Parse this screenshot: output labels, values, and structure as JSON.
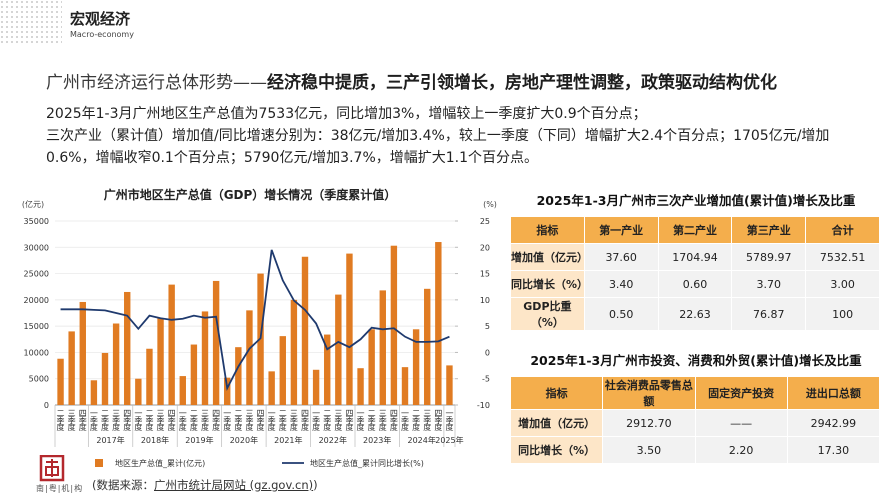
{
  "header": {
    "title": "宏观经济",
    "subtitle": "Macro-economy"
  },
  "headline": {
    "prefix": "广州市经济运行总体形势——",
    "emphasis": "经济稳中提质，三产引领增长，房地产理性调整，政策驱动结构优化"
  },
  "paragraphs": [
    "2025年1-3月广州地区生产总值为7533亿元，同比增加3%，增幅较上一季度扩大0.9个百分点；",
    "三次产业（累计值）增加值/同比增速分别为：38亿元/增加3.4%，较上一季度（下同）增幅扩大2.4个百分点；1705亿元/增加0.6%，增幅收窄0.1个百分点；5790亿元/增加3.7%，增幅扩大1.1个百分点。"
  ],
  "chart_data": {
    "type": "bar_line",
    "title": "广州市地区生产总值（GDP）增长情况（季度累计值）",
    "y_unit": "(亿元)",
    "y2_unit": "(%)",
    "category_groups": [
      {
        "label": null,
        "categories": [
          "二季度",
          "三季度",
          "四季度"
        ]
      },
      {
        "label": "2017年",
        "categories": [
          "一季度",
          "二季度",
          "三季度",
          "四季度"
        ]
      },
      {
        "label": "2018年",
        "categories": [
          "一季度",
          "二季度",
          "三季度",
          "四季度"
        ]
      },
      {
        "label": "2019年",
        "categories": [
          "一季度",
          "二季度",
          "三季度",
          "四季度"
        ]
      },
      {
        "label": "2020年",
        "categories": [
          "一季度",
          "二季度",
          "三季度",
          "四季度"
        ]
      },
      {
        "label": "2021年",
        "categories": [
          "一季度",
          "二季度",
          "三季度",
          "四季度"
        ]
      },
      {
        "label": "2022年",
        "categories": [
          "一季度",
          "二季度",
          "三季度",
          "四季度"
        ]
      },
      {
        "label": "2023年",
        "categories": [
          "一季度",
          "二季度",
          "三季度",
          "四季度"
        ]
      },
      {
        "label": "2024年",
        "categories": [
          "一季度",
          "二季度",
          "三季度",
          "四季度"
        ]
      },
      {
        "label": "2025年",
        "categories": [
          "一季度"
        ]
      }
    ],
    "series": [
      {
        "name": "地区生产总值_累计(亿元)",
        "color": "#e07b22",
        "type": "bar",
        "values": [
          8800,
          14000,
          19600,
          4700,
          9900,
          15500,
          21500,
          5000,
          10700,
          16500,
          22900,
          5500,
          11500,
          17800,
          23600,
          5200,
          11000,
          18000,
          25000,
          6400,
          13100,
          20000,
          28200,
          6700,
          13400,
          21000,
          28800,
          7000,
          14400,
          21800,
          30300,
          7200,
          14400,
          22100,
          31000,
          7533
        ]
      },
      {
        "name": "地区生产总值_累计同比增长(%)",
        "color": "#1f3a6e",
        "type": "line",
        "axis": "y2",
        "values": [
          8.2,
          8.2,
          8.2,
          8.1,
          8.0,
          7.5,
          7.0,
          4.5,
          7.0,
          6.5,
          6.2,
          6.4,
          7.0,
          6.6,
          6.8,
          -6.8,
          -2.7,
          0.7,
          2.7,
          19.5,
          13.7,
          9.9,
          8.1,
          5.5,
          0.6,
          2.0,
          1.0,
          2.5,
          4.7,
          4.4,
          4.6,
          3.0,
          2.0,
          2.0,
          2.1,
          3.0
        ]
      }
    ],
    "ylim": [
      0,
      35000
    ],
    "yticks": [
      0,
      5000,
      10000,
      15000,
      20000,
      25000,
      30000,
      35000
    ],
    "y2lim": [
      -10,
      25
    ],
    "y2ticks": [
      -10,
      -5,
      0,
      5,
      10,
      15,
      20,
      25
    ],
    "grid": true,
    "legend": "bottom"
  },
  "tables": [
    {
      "title": "2025年1-3月广州市三次产业增加值(累计值)增长及比重",
      "columns": [
        "指标",
        "第一产业",
        "第二产业",
        "第三产业",
        "合计"
      ],
      "rows": [
        [
          "增加值（亿元）",
          "37.60",
          "1704.94",
          "5789.97",
          "7532.51"
        ],
        [
          "同比增长（%）",
          "3.40",
          "0.60",
          "3.70",
          "3.00"
        ],
        [
          "GDP比重（%）",
          "0.50",
          "22.63",
          "76.87",
          "100"
        ]
      ]
    },
    {
      "title": "2025年1-3月广州市投资、消费和外贸(累计值)增长及比重",
      "columns": [
        "指标",
        "社会消费品零售总额",
        "固定资产投资",
        "进出口总额"
      ],
      "rows": [
        [
          "增加值（亿元）",
          "2912.70",
          "——",
          "2942.99"
        ],
        [
          "同比增长（%）",
          "3.50",
          "2.20",
          "17.30"
        ]
      ]
    }
  ],
  "footer": {
    "logo": "南|粤|机|构",
    "source_prefix": "(数据来源：",
    "source_link": "广州市统计局网站 (gz.gov.cn)",
    "source_suffix": ")"
  }
}
